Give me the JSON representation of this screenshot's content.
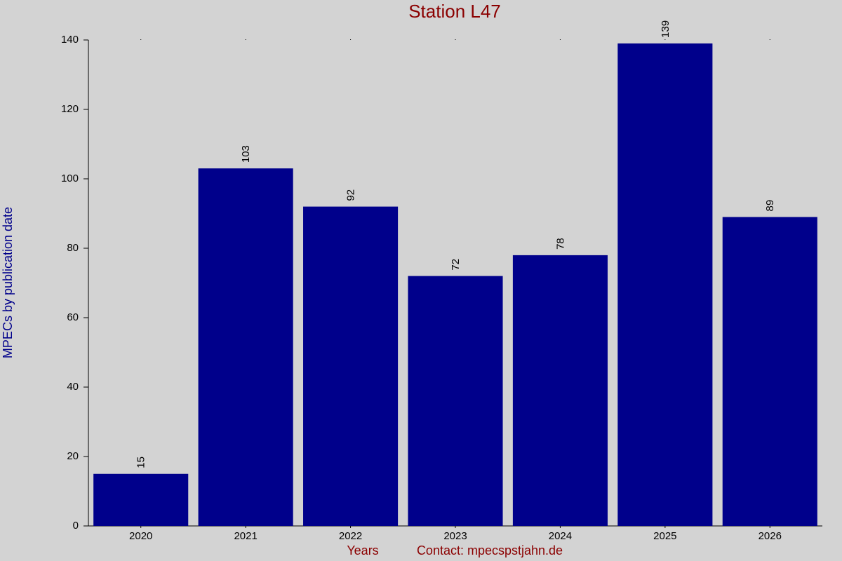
{
  "chart_data": {
    "type": "bar",
    "title": "Station L47",
    "x_label": "Years",
    "contact": "Contact: mpecspstjahn.de",
    "y_label": "MPECs by publication date",
    "categories": [
      "2020",
      "2021",
      "2022",
      "2023",
      "2024",
      "2025",
      "2026"
    ],
    "values": [
      15,
      103,
      92,
      72,
      78,
      139,
      89
    ],
    "color": "#00008b",
    "ylim": [
      0,
      140
    ],
    "yticks": [
      0,
      20,
      40,
      60,
      80,
      100,
      120,
      140
    ]
  }
}
